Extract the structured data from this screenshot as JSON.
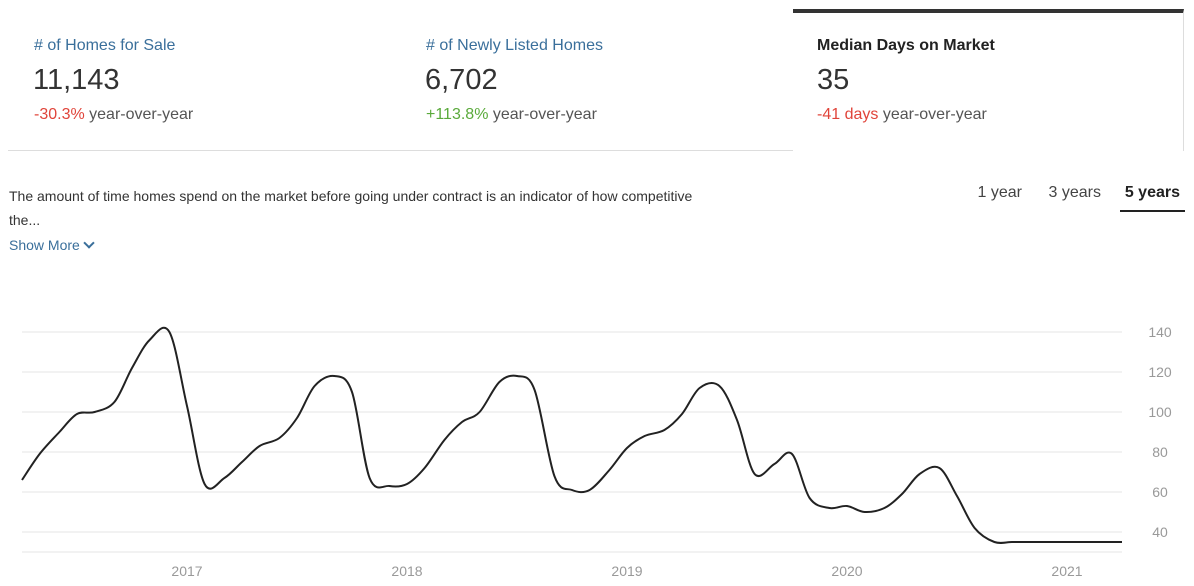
{
  "stats": [
    {
      "label": "# of Homes for Sale",
      "value": "11,143",
      "change": "-30.3%",
      "suffix": "year-over-year",
      "change_color": "#e0443a"
    },
    {
      "label": "# of Newly Listed Homes",
      "value": "6,702",
      "change": "+113.8%",
      "suffix": "year-over-year",
      "change_color": "#5aaa3b"
    },
    {
      "label": "Median Days on Market",
      "value": "35",
      "change": "-41 days",
      "suffix": "year-over-year",
      "change_color": "#e0443a",
      "selected": true
    }
  ],
  "description": "The amount of time homes spend on the market before going under contract is an indicator of how competitive the...",
  "show_more": "Show More",
  "tabs": [
    {
      "label": "1 year",
      "selected": false
    },
    {
      "label": "3 years",
      "selected": false
    },
    {
      "label": "5 years",
      "selected": true
    }
  ],
  "chart_data": {
    "type": "line",
    "title": "",
    "xlabel": "",
    "ylabel": "",
    "ylim": [
      30,
      140
    ],
    "yticks": [
      40,
      60,
      80,
      100,
      120,
      140
    ],
    "xticks": [
      "2017",
      "2018",
      "2019",
      "2020",
      "2021"
    ],
    "xticks_pos": [
      2017.0,
      2018.0,
      2019.0,
      2020.0,
      2021.0
    ],
    "xlim": [
      2016.25,
      2021.25
    ],
    "grid": true,
    "y_axis_side": "right",
    "line_color": "#222222",
    "series": [
      {
        "x": [
          2016.25,
          2016.33,
          2016.42,
          2016.5,
          2016.58,
          2016.67,
          2016.75,
          2016.83,
          2016.92,
          2017.0,
          2017.08,
          2017.17,
          2017.25,
          2017.33,
          2017.42,
          2017.5,
          2017.58,
          2017.67,
          2017.75,
          2017.83,
          2017.92,
          2018.0,
          2018.08,
          2018.17,
          2018.25,
          2018.33,
          2018.42,
          2018.5,
          2018.58,
          2018.67,
          2018.75,
          2018.83,
          2018.92,
          2019.0,
          2019.08,
          2019.17,
          2019.25,
          2019.33,
          2019.42,
          2019.5,
          2019.58,
          2019.67,
          2019.75,
          2019.83,
          2019.92,
          2020.0,
          2020.08,
          2020.17,
          2020.25,
          2020.33,
          2020.42,
          2020.5,
          2020.58,
          2020.67,
          2020.75,
          2020.83,
          2020.92,
          2021.0,
          2021.08,
          2021.17,
          2021.25
        ],
        "values": [
          66,
          79,
          90,
          99,
          100,
          105,
          122,
          136,
          140,
          103,
          64,
          67,
          75,
          83,
          87,
          97,
          113,
          118,
          110,
          67,
          63,
          64,
          72,
          86,
          95,
          100,
          115,
          118,
          111,
          68,
          61,
          61,
          71,
          82,
          88,
          91,
          99,
          112,
          113,
          96,
          69,
          74,
          79,
          57,
          52,
          53,
          50,
          52,
          59,
          69,
          72,
          58,
          42,
          35,
          35,
          35,
          35,
          35,
          35,
          35,
          35
        ]
      }
    ]
  }
}
